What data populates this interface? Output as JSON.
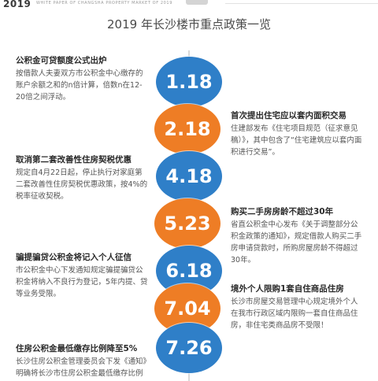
{
  "header": {
    "year": "2019",
    "caption": "WHITE PAPER OF CHANGSHA PROPERTY MARKET OF 2019"
  },
  "title": "2019 年长沙楼市重点政策一览",
  "colors": {
    "blue": "#2f7fc8",
    "orange": "#ee7d25",
    "spine": "#d9d9d9"
  },
  "items": [
    {
      "date": "1.18",
      "color": "blue",
      "title": "公积金可贷额度公式出炉",
      "body": "按借款人夫妻双方市公积金中心缴存的账户余额之和的n倍计算，倍数n在12-20倍之间浮动。"
    },
    {
      "date": "2.18",
      "color": "orange",
      "title": "首次提出住宅应以套内面积交易",
      "body": "住建部发布《住宅项目规范（征求意见稿）》，其中包含了“住宅建筑应以套内面积进行交易”。"
    },
    {
      "date": "4.18",
      "color": "blue",
      "title": "取消第二套改善性住房契税优惠",
      "body": "规定自4月22日起，停止执行对家庭第二套改善性住房契税优惠政策，按4%的税率征收契税。"
    },
    {
      "date": "5.23",
      "color": "orange",
      "title": "购买二手房房龄不超过30年",
      "body": "省直公积金中心发布《关于调整部分公积金政策的通知》，规定借款人购买二手房申请贷款时，所购房屋房龄不得超过30年。"
    },
    {
      "date": "6.18",
      "color": "blue",
      "title": "骗提骗贷公积金将记入个人征信",
      "body": "市公积金中心下发通知规定骗提骗贷公积金将纳入不良行为登记，5年内提、贷等业务受限。"
    },
    {
      "date": "7.04",
      "color": "orange",
      "title": "境外个人限购1套自住商品住房",
      "body": "长沙市房屋交易管理中心规定境外个人在我市行政区域内限购一套自住商品住房，非住宅类商品房不受限！"
    },
    {
      "date": "7.26",
      "color": "blue",
      "title": "住房公积金最低缴存比例降至5%",
      "body": "长沙住房公积金管理委员会下发《通知》明确将长沙市住房公积金最低缴存比例"
    }
  ]
}
